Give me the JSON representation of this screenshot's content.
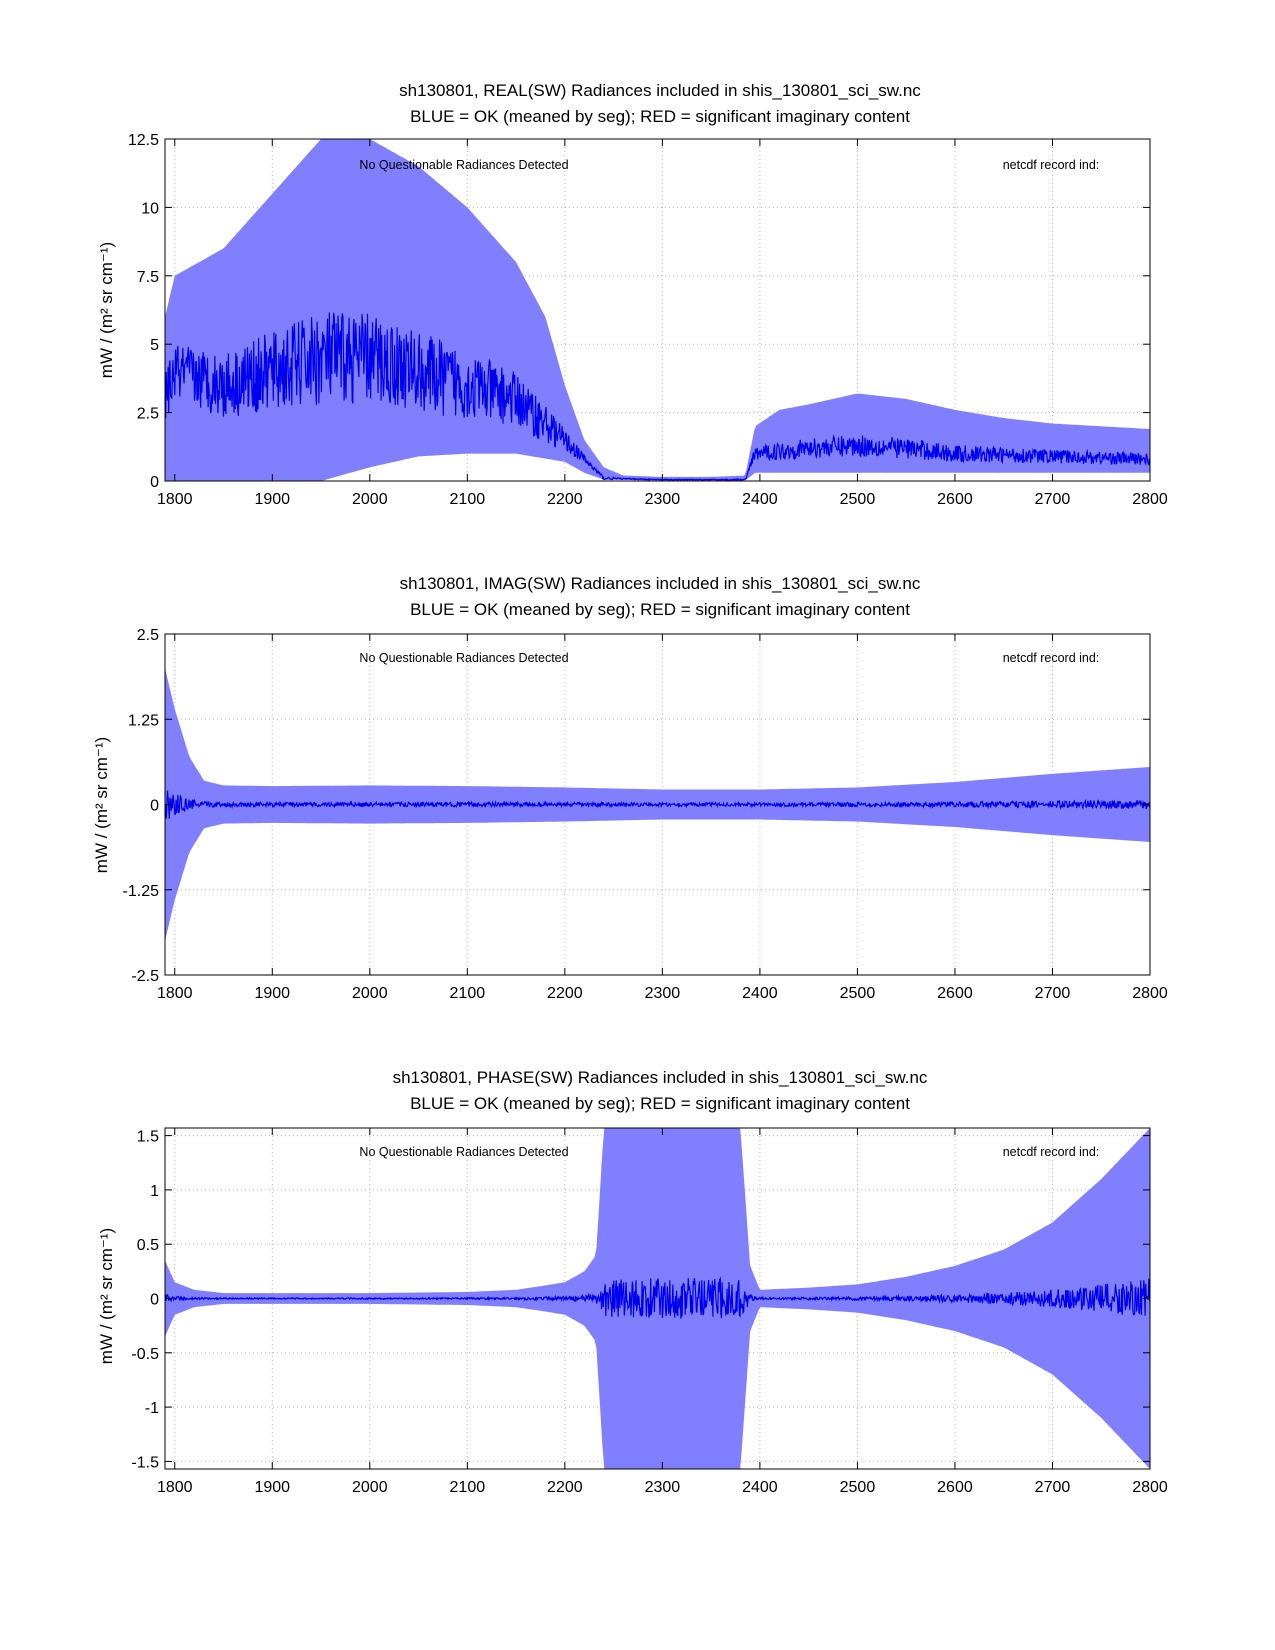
{
  "colors": {
    "envelope": "#8080ff",
    "mean": "#0000ee",
    "axis": "#000000",
    "grid": "#b4b4b4",
    "background": "#ffffff"
  },
  "chart_data": [
    {
      "type": "line",
      "title": "sh130801, REAL(SW) Radiances included in shis_130801_sci_sw.nc",
      "subtitle": "BLUE = OK (meaned by seg); RED = significant imaginary content",
      "xlabel": "",
      "ylabel": "mW / (m² sr cm⁻¹)",
      "xlim": [
        1790,
        2800
      ],
      "ylim": [
        0,
        12.5
      ],
      "xticks": [
        1800,
        1900,
        2000,
        2100,
        2200,
        2300,
        2400,
        2500,
        2600,
        2700,
        2800
      ],
      "xtick_labels": [
        "1800",
        "1900",
        "2000",
        "2100",
        "2200",
        "2300",
        "2400",
        "2500",
        "2600",
        "2700",
        "2800"
      ],
      "yticks": [
        0,
        2.5,
        5,
        7.5,
        10,
        12.5
      ],
      "ytick_labels": [
        "0",
        "2.5",
        "5",
        "7.5",
        "10",
        "12.5"
      ],
      "grid": true,
      "annotations": [
        "No Questionable Radiances Detected",
        "netcdf record ind:"
      ],
      "series": [
        {
          "name": "envelope (max)",
          "x": [
            1790,
            1800,
            1850,
            1900,
            1950,
            2000,
            2050,
            2100,
            2150,
            2180,
            2200,
            2220,
            2240,
            2260,
            2300,
            2350,
            2385,
            2395,
            2420,
            2450,
            2500,
            2550,
            2600,
            2650,
            2700,
            2750,
            2800
          ],
          "values": [
            6.0,
            7.5,
            8.5,
            10.5,
            12.5,
            12.5,
            11.5,
            10.0,
            8.0,
            6.0,
            3.5,
            1.5,
            0.5,
            0.2,
            0.15,
            0.15,
            0.2,
            2.0,
            2.6,
            2.8,
            3.2,
            3.0,
            2.6,
            2.3,
            2.1,
            2.0,
            1.9
          ]
        },
        {
          "name": "envelope (min)",
          "x": [
            1790,
            1800,
            1850,
            1900,
            1950,
            2000,
            2050,
            2100,
            2150,
            2200,
            2220,
            2240,
            2300,
            2385,
            2395,
            2500,
            2600,
            2700,
            2800
          ],
          "values": [
            0,
            0,
            0,
            0,
            0,
            0.5,
            0.9,
            1.0,
            1.0,
            0.7,
            0.3,
            0.05,
            0.02,
            0.02,
            0.3,
            0.3,
            0.3,
            0.3,
            0.3
          ]
        },
        {
          "name": "mean (blue)",
          "x": [
            1790,
            1800,
            1850,
            1900,
            1950,
            2000,
            2050,
            2100,
            2150,
            2200,
            2220,
            2240,
            2300,
            2385,
            2395,
            2450,
            2500,
            2550,
            2600,
            2700,
            2800
          ],
          "values": [
            3.0,
            4.0,
            3.5,
            4.0,
            4.5,
            4.5,
            4.0,
            3.5,
            3.0,
            1.5,
            0.8,
            0.1,
            0.05,
            0.05,
            1.0,
            1.2,
            1.3,
            1.2,
            1.0,
            0.9,
            0.8
          ]
        }
      ]
    },
    {
      "type": "line",
      "title": "sh130801, IMAG(SW) Radiances included in shis_130801_sci_sw.nc",
      "subtitle": "BLUE = OK (meaned by seg); RED = significant imaginary content",
      "xlabel": "",
      "ylabel": "mW / (m² sr cm⁻¹)",
      "xlim": [
        1790,
        2800
      ],
      "ylim": [
        -2.5,
        2.5
      ],
      "xticks": [
        1800,
        1900,
        2000,
        2100,
        2200,
        2300,
        2400,
        2500,
        2600,
        2700,
        2800
      ],
      "xtick_labels": [
        "1800",
        "1900",
        "2000",
        "2100",
        "2200",
        "2300",
        "2400",
        "2500",
        "2600",
        "2700",
        "2800"
      ],
      "yticks": [
        -2.5,
        -1.25,
        0,
        1.25,
        2.5
      ],
      "ytick_labels": [
        "-2.5",
        "-1.25",
        "0",
        "1.25",
        "2.5"
      ],
      "grid": true,
      "annotations": [
        "No Questionable Radiances Detected",
        "netcdf record ind:"
      ],
      "series": [
        {
          "name": "envelope (max)",
          "x": [
            1790,
            1800,
            1815,
            1830,
            1850,
            1900,
            2000,
            2100,
            2200,
            2300,
            2400,
            2500,
            2600,
            2700,
            2800
          ],
          "values": [
            2.0,
            1.4,
            0.7,
            0.35,
            0.28,
            0.27,
            0.28,
            0.27,
            0.25,
            0.22,
            0.22,
            0.25,
            0.33,
            0.45,
            0.55
          ]
        },
        {
          "name": "envelope (min)",
          "x": [
            1790,
            1800,
            1815,
            1830,
            1850,
            1900,
            2000,
            2100,
            2200,
            2300,
            2400,
            2500,
            2600,
            2700,
            2800
          ],
          "values": [
            -2.0,
            -1.4,
            -0.7,
            -0.35,
            -0.28,
            -0.27,
            -0.28,
            -0.27,
            -0.25,
            -0.22,
            -0.22,
            -0.25,
            -0.33,
            -0.45,
            -0.55
          ]
        },
        {
          "name": "mean (blue)",
          "x": [
            1790,
            2800
          ],
          "values": [
            0,
            0
          ]
        }
      ]
    },
    {
      "type": "line",
      "title": "sh130801, PHASE(SW) Radiances included in shis_130801_sci_sw.nc",
      "subtitle": "BLUE = OK (meaned by seg); RED = significant imaginary content",
      "xlabel": "",
      "ylabel": "mW / (m² sr cm⁻¹)",
      "xlim": [
        1790,
        2800
      ],
      "ylim": [
        -1.57,
        1.57
      ],
      "xticks": [
        1800,
        1900,
        2000,
        2100,
        2200,
        2300,
        2400,
        2500,
        2600,
        2700,
        2800
      ],
      "xtick_labels": [
        "1800",
        "1900",
        "2000",
        "2100",
        "2200",
        "2300",
        "2400",
        "2500",
        "2600",
        "2700",
        "2800"
      ],
      "yticks": [
        -1.5,
        -1,
        -0.5,
        0,
        0.5,
        1,
        1.5
      ],
      "ytick_labels": [
        "-1.5",
        "-1",
        "-0.5",
        "0",
        "0.5",
        "1",
        "1.5"
      ],
      "grid": true,
      "annotations": [
        "No Questionable Radiances Detected",
        "netcdf record ind:"
      ],
      "series": [
        {
          "name": "envelope (max)",
          "x": [
            1790,
            1800,
            1820,
            1850,
            1900,
            2000,
            2100,
            2150,
            2180,
            2200,
            2220,
            2232,
            2240,
            2380,
            2390,
            2400,
            2450,
            2500,
            2550,
            2600,
            2650,
            2700,
            2750,
            2800
          ],
          "values": [
            0.35,
            0.15,
            0.08,
            0.05,
            0.05,
            0.05,
            0.06,
            0.08,
            0.12,
            0.15,
            0.25,
            0.4,
            1.57,
            1.57,
            0.3,
            0.08,
            0.1,
            0.13,
            0.2,
            0.3,
            0.45,
            0.7,
            1.1,
            1.57
          ]
        },
        {
          "name": "envelope (min)",
          "x": [
            1790,
            1800,
            1820,
            1850,
            1900,
            2000,
            2100,
            2150,
            2180,
            2200,
            2220,
            2232,
            2240,
            2380,
            2390,
            2400,
            2450,
            2500,
            2550,
            2600,
            2650,
            2700,
            2750,
            2800
          ],
          "values": [
            -0.35,
            -0.15,
            -0.08,
            -0.05,
            -0.05,
            -0.05,
            -0.06,
            -0.08,
            -0.12,
            -0.15,
            -0.25,
            -0.4,
            -1.57,
            -1.57,
            -0.3,
            -0.08,
            -0.1,
            -0.13,
            -0.2,
            -0.3,
            -0.45,
            -0.7,
            -1.1,
            -1.57
          ]
        },
        {
          "name": "mean (blue)",
          "x": [
            1790,
            2800
          ],
          "values": [
            0,
            0
          ]
        }
      ]
    }
  ]
}
